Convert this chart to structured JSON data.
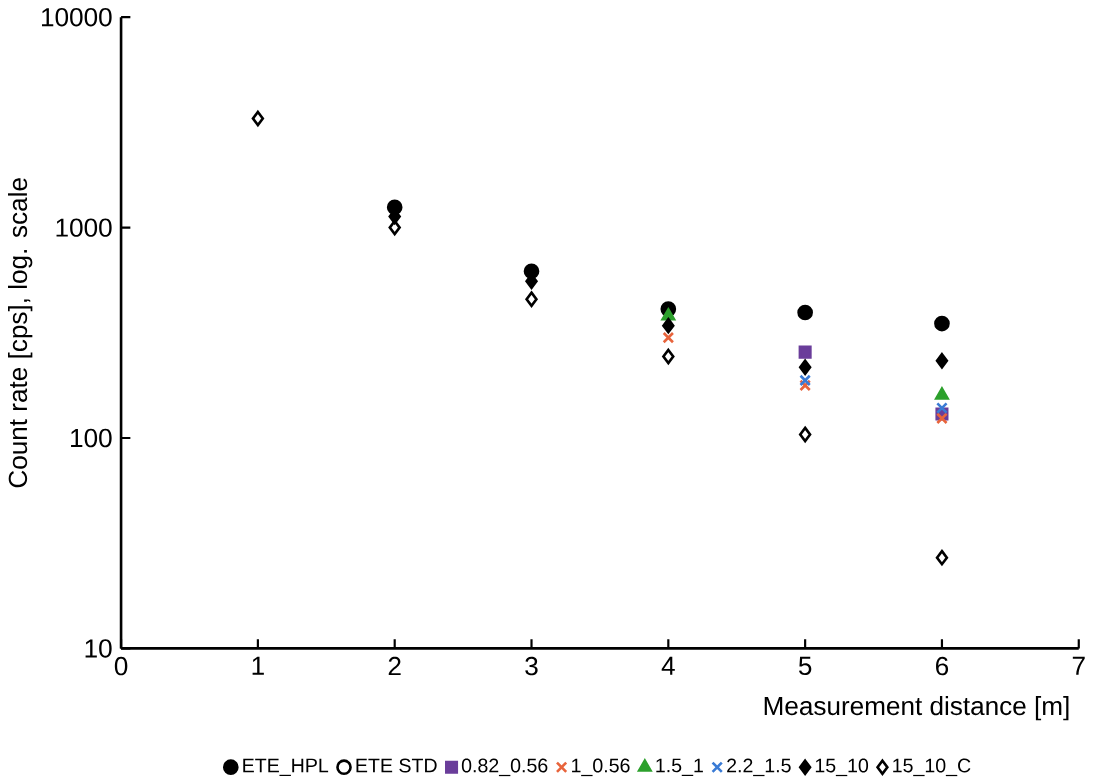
{
  "chart_data": {
    "type": "scatter",
    "xlabel": "Measurement distance [m]",
    "ylabel": "Count rate [cps], log. scale",
    "x": [
      1,
      2,
      3,
      4,
      5,
      6
    ],
    "xlim": [
      0,
      7
    ],
    "xticks": [
      0,
      1,
      2,
      3,
      4,
      5,
      6,
      7
    ],
    "ylim": [
      10,
      10000
    ],
    "yticks": [
      10,
      100,
      1000,
      10000
    ],
    "log": "y",
    "legend": "bottom",
    "series": [
      {
        "name": "ETE_HPL",
        "color": "#000000",
        "marker": "circle",
        "values": [
          null,
          1250,
          620,
          410,
          395,
          350
        ]
      },
      {
        "name": "ETE STD",
        "color": "#000000",
        "marker": "circle",
        "values": [
          null,
          null,
          null,
          null,
          null,
          null
        ]
      },
      {
        "name": "0.82_0.56",
        "color": "#6a3d9a",
        "marker": "square",
        "values": [
          null,
          null,
          null,
          null,
          256,
          130
        ]
      },
      {
        "name": "1_0.56",
        "color": "#e8643c",
        "marker": "cross",
        "values": [
          null,
          null,
          null,
          300,
          178,
          124
        ]
      },
      {
        "name": "1.5_1",
        "color": "#2ca02c",
        "marker": "triangle",
        "values": [
          null,
          null,
          null,
          380,
          null,
          160
        ]
      },
      {
        "name": "2.2_1.5",
        "color": "#3a7bd5",
        "marker": "cross",
        "values": [
          null,
          null,
          null,
          null,
          188,
          139
        ]
      },
      {
        "name": "15_10",
        "color": "#000000",
        "marker": "diamond",
        "values": [
          null,
          1130,
          556,
          342,
          217,
          233
        ]
      },
      {
        "name": "15_10_C",
        "color": "#000000",
        "marker": "diamond",
        "values": [
          3300,
          1000,
          457,
          244,
          104,
          27
        ]
      }
    ]
  }
}
